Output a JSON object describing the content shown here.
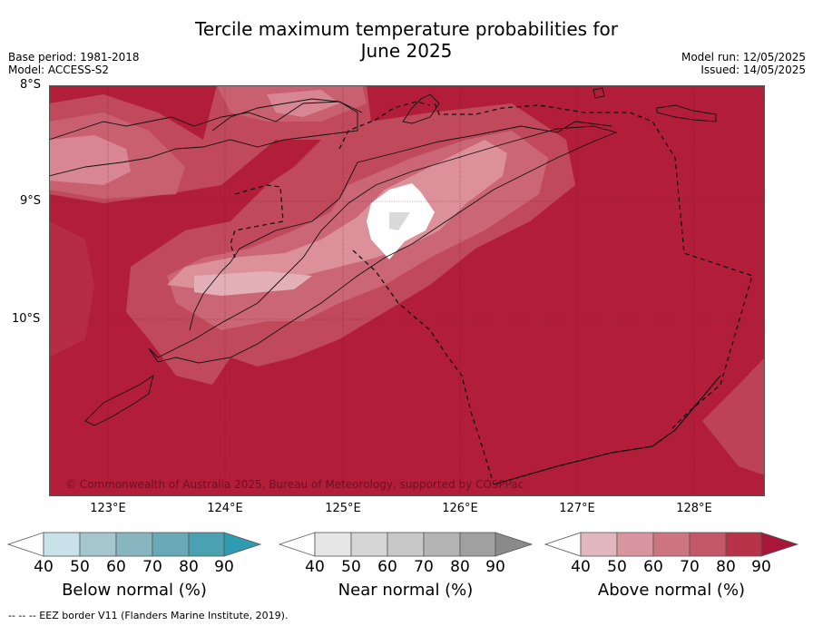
{
  "title_line1": "Tercile maximum temperature probabilities for",
  "title_line2": "June 2025",
  "base_period": "Base period: 1981-2018",
  "model": "Model: ACCESS-S2",
  "model_run": "Model run: 12/05/2025",
  "issued": "Issued: 14/05/2025",
  "lat_labels": [
    "8°S",
    "9°S",
    "10°S"
  ],
  "lon_labels": [
    "123°E",
    "124°E",
    "125°E",
    "126°E",
    "127°E",
    "128°E"
  ],
  "copyright": "© Commonwealth of Australia 2025, Bureau of Meteorology, supported by COSPPac",
  "colorbars": {
    "below": {
      "title": "Below normal (%)",
      "ticks": [
        "40",
        "50",
        "60",
        "70",
        "80",
        "90"
      ],
      "colors": [
        "#c9e1e8",
        "#a6c6cd",
        "#88b5c0",
        "#6aa9b7",
        "#49a1b1",
        "#2f9bb0"
      ]
    },
    "near": {
      "title": "Near normal (%)",
      "ticks": [
        "40",
        "50",
        "60",
        "70",
        "80",
        "90"
      ],
      "colors": [
        "#e6e6e6",
        "#d6d6d6",
        "#c8c8c8",
        "#b4b4b4",
        "#a0a0a0",
        "#8a8a8a"
      ]
    },
    "above": {
      "title": "Above normal (%)",
      "ticks": [
        "40",
        "50",
        "60",
        "70",
        "80",
        "90"
      ],
      "colors": [
        "#e2b7bf",
        "#d8959f",
        "#cd7580",
        "#c25868",
        "#b83248",
        "#a8173a"
      ]
    }
  },
  "legend_note": "--  --  -- EEZ border V11 (Flanders Marine Institute, 2019)."
}
